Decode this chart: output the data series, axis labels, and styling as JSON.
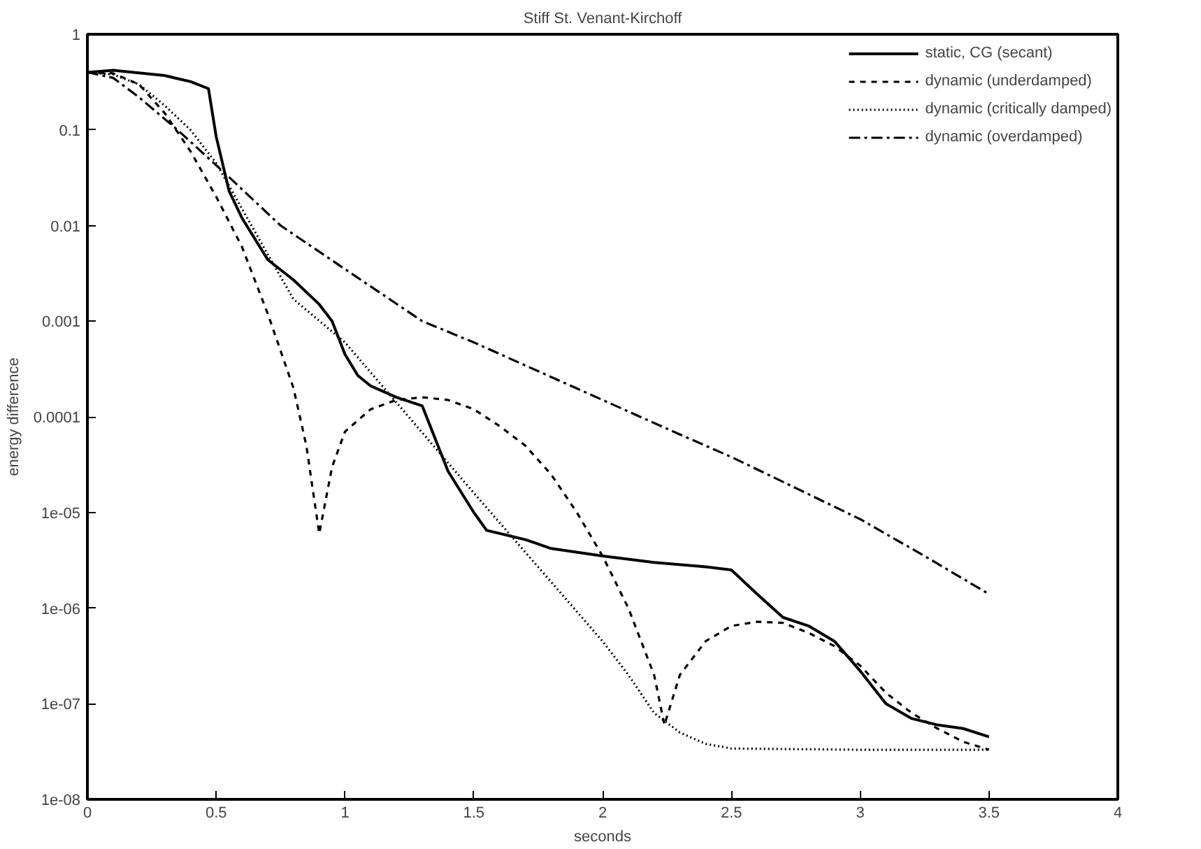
{
  "chart_data": {
    "type": "line",
    "title": "Stiff St. Venant-Kirchoff",
    "xlabel": "seconds",
    "ylabel": "energy difference",
    "log": "y",
    "grid": false,
    "legend": "top right",
    "xlim": [
      0,
      4
    ],
    "xticks": [
      0,
      0.5,
      1,
      1.5,
      2,
      2.5,
      3,
      3.5,
      4
    ],
    "ylim": [
      1e-08,
      1
    ],
    "yticks": [
      1,
      0.1,
      0.01,
      0.001,
      0.0001,
      {
        "value": 1e-05,
        "label": "1e-05"
      },
      {
        "value": 1e-06,
        "label": "1e-06"
      },
      {
        "value": 1e-07,
        "label": "1e-07"
      },
      {
        "value": 1e-08,
        "label": "1e-08"
      }
    ],
    "series": [
      {
        "name": "static, CG (secant)",
        "color": "#000000",
        "line_style": "solid",
        "x": [
          0,
          0.1,
          0.3,
          0.4,
          0.47,
          0.5,
          0.55,
          0.6,
          0.7,
          0.8,
          0.9,
          0.95,
          1.0,
          1.05,
          1.1,
          1.2,
          1.3,
          1.4,
          1.5,
          1.55,
          1.7,
          1.8,
          2.0,
          2.2,
          2.4,
          2.5,
          2.6,
          2.7,
          2.8,
          2.9,
          3.0,
          3.1,
          3.2,
          3.3,
          3.4,
          3.5
        ],
        "values": [
          0.4,
          0.42,
          0.37,
          0.32,
          0.27,
          0.085,
          0.023,
          0.012,
          0.0044,
          0.0027,
          0.0015,
          0.001,
          0.00045,
          0.00027,
          0.00021,
          0.00016,
          0.00013,
          2.7e-05,
          1e-05,
          6.5e-06,
          5.2e-06,
          4.2e-06,
          3.5e-06,
          3e-06,
          2.7e-06,
          2.5e-06,
          1.4e-06,
          8e-07,
          6.5e-07,
          4.5e-07,
          2.2e-07,
          1e-07,
          7e-08,
          6e-08,
          5.5e-08,
          4.5e-08
        ]
      },
      {
        "name": "dynamic (underdamped)",
        "color": "#000000",
        "line_style": "dashed",
        "x": [
          0,
          0.1,
          0.2,
          0.3,
          0.4,
          0.5,
          0.6,
          0.7,
          0.8,
          0.85,
          0.9,
          0.95,
          1.0,
          1.1,
          1.2,
          1.3,
          1.4,
          1.5,
          1.6,
          1.7,
          1.8,
          1.9,
          2.0,
          2.1,
          2.2,
          2.24,
          2.3,
          2.4,
          2.5,
          2.6,
          2.7,
          2.8,
          2.9,
          3.0,
          3.1,
          3.2,
          3.3,
          3.4,
          3.5
        ],
        "values": [
          0.4,
          0.39,
          0.3,
          0.15,
          0.06,
          0.02,
          0.006,
          0.0012,
          0.0002,
          5e-05,
          6e-06,
          3e-05,
          7e-05,
          0.00012,
          0.00015,
          0.00016,
          0.00015,
          0.00012,
          8e-05,
          5e-05,
          2.5e-05,
          1e-05,
          3.5e-06,
          1e-06,
          2e-07,
          6e-08,
          2e-07,
          4.5e-07,
          6.5e-07,
          7.2e-07,
          7e-07,
          5.5e-07,
          4e-07,
          2.5e-07,
          1.3e-07,
          8e-08,
          5.5e-08,
          4e-08,
          3.3e-08
        ]
      },
      {
        "name": "dynamic (critically damped)",
        "color": "#000000",
        "line_style": "dotted",
        "x": [
          0,
          0.1,
          0.2,
          0.3,
          0.4,
          0.5,
          0.6,
          0.7,
          0.8,
          1.0,
          1.5,
          2.0,
          2.1,
          2.2,
          2.3,
          2.4,
          2.5,
          3.0,
          3.5
        ],
        "values": [
          0.4,
          0.38,
          0.3,
          0.18,
          0.1,
          0.045,
          0.015,
          0.005,
          0.0017,
          0.0006,
          1.6e-05,
          4.5e-07,
          2e-07,
          8e-08,
          5e-08,
          3.8e-08,
          3.4e-08,
          3.3e-08,
          3.3e-08
        ]
      },
      {
        "name": "dynamic (overdamped)",
        "color": "#000000",
        "line_style": "dashdot",
        "x": [
          0,
          0.1,
          0.2,
          0.35,
          0.54,
          0.75,
          1.0,
          1.3,
          1.5,
          1.75,
          2.0,
          2.25,
          2.5,
          2.75,
          3.0,
          3.25,
          3.5
        ],
        "values": [
          0.4,
          0.35,
          0.22,
          0.1,
          0.034,
          0.01,
          0.0035,
          0.001,
          0.0006,
          0.0003,
          0.00015,
          7.5e-05,
          3.8e-05,
          1.8e-05,
          8.5e-06,
          3.5e-06,
          1.4e-06
        ]
      }
    ]
  }
}
